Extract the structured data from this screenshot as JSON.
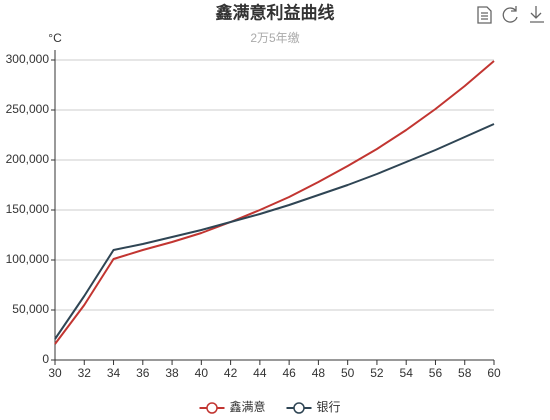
{
  "chart_data": {
    "type": "line",
    "title": "鑫满意利益曲线",
    "subtitle": "2万5年缴",
    "y_axis_label": "°C",
    "x": [
      30,
      32,
      34,
      36,
      38,
      40,
      42,
      44,
      46,
      48,
      50,
      52,
      54,
      56,
      58,
      60
    ],
    "series": [
      {
        "name": "鑫满意",
        "color": "#c23531",
        "values": [
          16000,
          55000,
          101000,
          110000,
          118000,
          127000,
          138000,
          150000,
          163000,
          178000,
          194000,
          211000,
          230000,
          251000,
          274000,
          299000
        ]
      },
      {
        "name": "银行",
        "color": "#2f4554",
        "values": [
          21000,
          64000,
          110000,
          116000,
          123000,
          130000,
          138000,
          146000,
          155000,
          165000,
          175000,
          186000,
          198000,
          210000,
          223000,
          236000
        ]
      }
    ],
    "xlim": [
      30,
      60
    ],
    "xticks": [
      30,
      32,
      34,
      36,
      38,
      40,
      42,
      44,
      46,
      48,
      50,
      52,
      54,
      56,
      58,
      60
    ],
    "ylim": [
      0,
      300000
    ],
    "yticks": [
      0,
      {
        "value": 50000,
        "label": "50,000"
      },
      {
        "value": 100000,
        "label": "100,000"
      },
      {
        "value": 150000,
        "label": "150,000"
      },
      {
        "value": 200000,
        "label": "200,000"
      },
      {
        "value": 250000,
        "label": "250,000"
      },
      {
        "value": 300000,
        "label": "300,000"
      }
    ],
    "grid": true,
    "legend": "bottom"
  }
}
